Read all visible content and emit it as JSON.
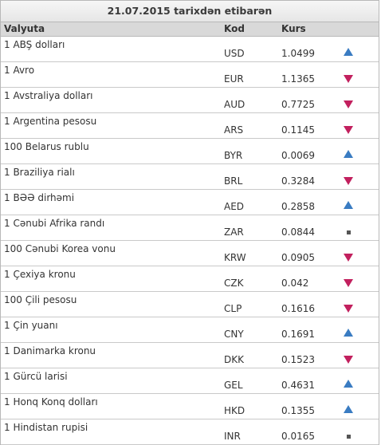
{
  "table": {
    "title": "21.07.2015 tarixdən etibarən",
    "headers": {
      "currency": "Valyuta",
      "code": "Kod",
      "rate": "Kurs"
    },
    "rows": [
      {
        "name": "1 ABŞ dolları",
        "code": "USD",
        "rate": "1.0499",
        "trend": "up"
      },
      {
        "name": "1 Avro",
        "code": "EUR",
        "rate": "1.1365",
        "trend": "down"
      },
      {
        "name": "1 Avstraliya dolları",
        "code": "AUD",
        "rate": "0.7725",
        "trend": "down"
      },
      {
        "name": "1 Argentina pesosu",
        "code": "ARS",
        "rate": "0.1145",
        "trend": "down"
      },
      {
        "name": "100 Belarus rublu",
        "code": "BYR",
        "rate": "0.0069",
        "trend": "up"
      },
      {
        "name": "1 Braziliya rialı",
        "code": "BRL",
        "rate": "0.3284",
        "trend": "down"
      },
      {
        "name": "1 BƏƏ dirhəmi",
        "code": "AED",
        "rate": "0.2858",
        "trend": "up"
      },
      {
        "name": "1 Cənubi Afrika randı",
        "code": "ZAR",
        "rate": "0.0844",
        "trend": "same"
      },
      {
        "name": "100 Cənubi Korea vonu",
        "code": "KRW",
        "rate": "0.0905",
        "trend": "down"
      },
      {
        "name": "1 Çexiya kronu",
        "code": "CZK",
        "rate": "0.042",
        "trend": "down"
      },
      {
        "name": "100 Çili pesosu",
        "code": "CLP",
        "rate": "0.1616",
        "trend": "down"
      },
      {
        "name": "1 Çin yuanı",
        "code": "CNY",
        "rate": "0.1691",
        "trend": "up"
      },
      {
        "name": "1 Danimarka kronu",
        "code": "DKK",
        "rate": "0.1523",
        "trend": "down"
      },
      {
        "name": "1 Gürcü larisi",
        "code": "GEL",
        "rate": "0.4631",
        "trend": "up"
      },
      {
        "name": "1 Honq Konq dolları",
        "code": "HKD",
        "rate": "0.1355",
        "trend": "up"
      },
      {
        "name": "1 Hindistan rupisi",
        "code": "INR",
        "rate": "0.0165",
        "trend": "same"
      }
    ]
  },
  "trend_icons": {
    "up": "triangle-up-icon",
    "down": "triangle-down-icon",
    "same": "square-dot-icon"
  },
  "colors": {
    "up": "#3a7cc2",
    "down": "#c2205e",
    "same": "#555555"
  }
}
